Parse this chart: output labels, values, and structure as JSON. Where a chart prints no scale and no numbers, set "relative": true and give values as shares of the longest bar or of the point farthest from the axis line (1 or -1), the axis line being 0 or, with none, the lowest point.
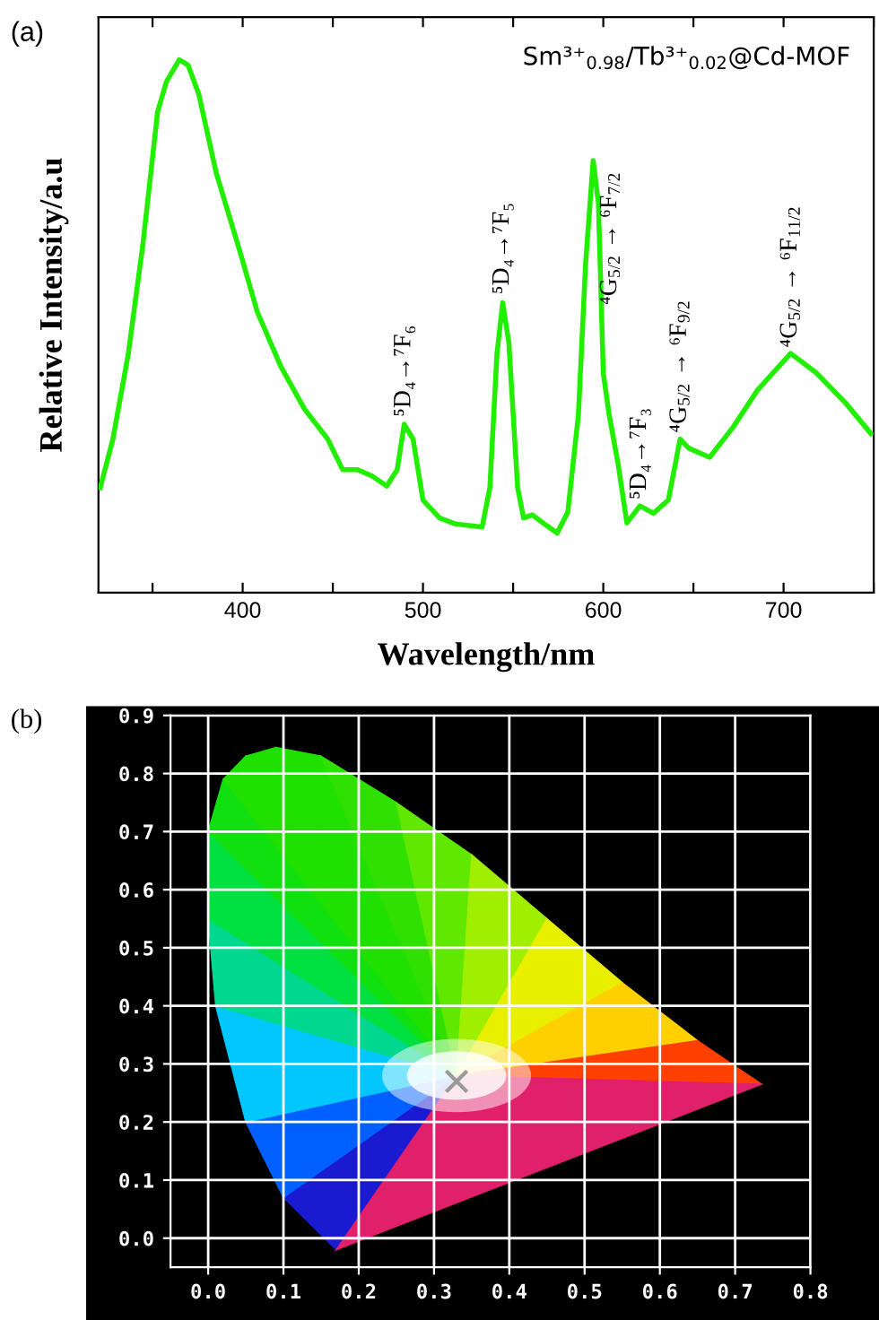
{
  "chart_data": [
    {
      "type": "line",
      "title": "(a)",
      "xlabel": "Wavelength/nm",
      "ylabel": "Relative Intensity/a.u",
      "relative": true,
      "tick_labels": "x",
      "grid": false,
      "legend": false,
      "xlim": [
        320,
        750
      ],
      "xticks": [
        {
          "value": 350,
          "label": null
        },
        400,
        {
          "value": 450,
          "label": null
        },
        500,
        {
          "value": 550,
          "label": null
        },
        600,
        {
          "value": 650,
          "label": null
        },
        700,
        {
          "value": 750,
          "label": null
        }
      ],
      "series": [
        {
          "color": "#22ee00",
          "x": [
            321,
            328,
            336.5,
            344.6,
            352.8,
            357.7,
            364.8,
            369.7,
            375.6,
            385.3,
            398.4,
            408.1,
            421.2,
            434.2,
            447.2,
            455.4,
            463.5,
            471.7,
            479.9,
            485.7,
            489.6,
            494.5,
            500,
            509.2,
            518.1,
            532.8,
            537.1,
            541,
            544.2,
            547.6,
            552.5,
            555.8,
            560.7,
            567.3,
            574.4,
            580.3,
            586.2,
            590.2,
            594.4,
            597.3,
            600,
            603.3,
            608.2,
            613.1,
            620.3,
            627.8,
            636.1,
            642.6,
            647.5,
            659,
            672.1,
            685.3,
            703.9,
            718,
            734.4,
            748.3
          ],
          "values": [
            0.197,
            0.288,
            0.447,
            0.652,
            0.902,
            0.959,
            1.0,
            0.99,
            0.936,
            0.788,
            0.641,
            0.527,
            0.424,
            0.345,
            0.288,
            0.231,
            0.231,
            0.219,
            0.2,
            0.231,
            0.316,
            0.288,
            0.174,
            0.14,
            0.129,
            0.123,
            0.197,
            0.447,
            0.544,
            0.47,
            0.197,
            0.14,
            0.146,
            0.129,
            0.112,
            0.151,
            0.333,
            0.618,
            0.811,
            0.731,
            0.412,
            0.333,
            0.242,
            0.131,
            0.163,
            0.149,
            0.174,
            0.288,
            0.271,
            0.254,
            0.311,
            0.379,
            0.449,
            0.413,
            0.356,
            0.299
          ]
        }
      ],
      "annotations": [
        "Sm³⁺$_{0.98}$/Tb³⁺$_{0.02}$@Cd-MOF",
        {
          "text": "⁵D₄→⁷F₆",
          "x": 489.6,
          "y": 0.33
        },
        {
          "text": "⁵D₄→⁷F₅",
          "x": 544.2,
          "y": 0.56
        },
        {
          "text": "⁴G$_{5/2}$ → ⁶F$_{7/2}$",
          "x": 604,
          "y": 0.54
        },
        {
          "text": "⁵D₄→⁷F₃",
          "x": 620.3,
          "y": 0.175
        },
        {
          "text": "⁴G$_{5/2}$ → ⁶F$_{9/2}$",
          "x": 642.6,
          "y": 0.3
        },
        {
          "text": "⁴G$_{5/2}$ → ⁶F$_{11/2}$",
          "x": 703.9,
          "y": 0.46
        }
      ]
    },
    {
      "type": "scatter",
      "title": "(b)",
      "grid": true,
      "marker": "cross",
      "legend": false,
      "xlim": [
        -0.05,
        0.8
      ],
      "xticks": [
        {
          "value": 0,
          "label": "0.0"
        },
        0.1,
        0.2,
        0.3,
        0.4,
        0.5,
        0.6,
        0.7,
        0.8
      ],
      "ylim": [
        -0.05,
        0.9
      ],
      "yticks": [
        {
          "value": 0,
          "label": "0.0"
        },
        0.1,
        0.2,
        0.3,
        0.4,
        0.5,
        0.6,
        0.7,
        0.8,
        0.9
      ],
      "series": [
        {
          "color": "#9a9a9a",
          "x": [
            0.33
          ],
          "values": [
            0.27
          ]
        }
      ]
    }
  ]
}
